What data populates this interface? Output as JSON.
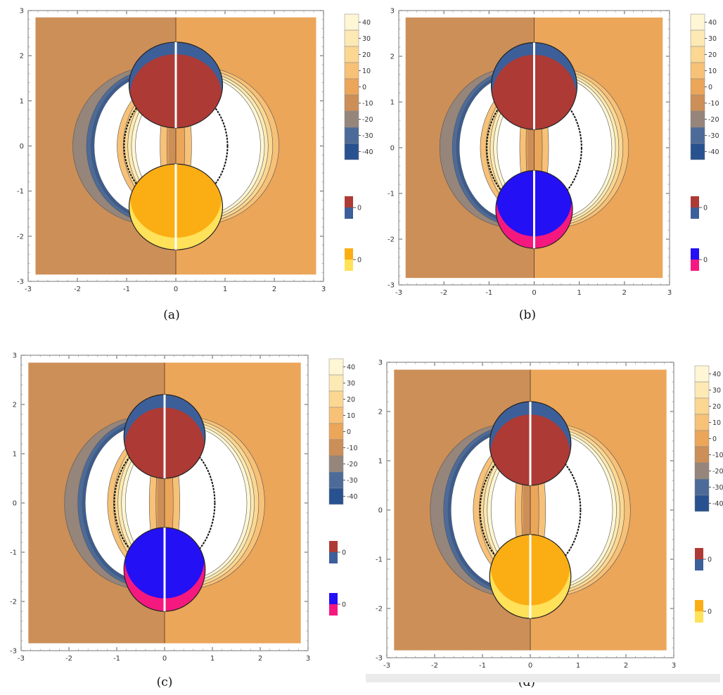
{
  "figure": {
    "colorbar_ticks": [
      "40",
      "30",
      "20",
      "10",
      "0",
      "-10",
      "-20",
      "-30",
      "-40"
    ],
    "small_legend_label": "0"
  },
  "chart_data": [
    {
      "type": "contour",
      "caption": "(a)",
      "xlim": [
        -3,
        3
      ],
      "ylim": [
        -3,
        3
      ],
      "x_ticks": [
        "-3",
        "-2",
        "-1",
        "0",
        "1",
        "2",
        "3"
      ],
      "y_ticks": [
        "3",
        "2",
        "1",
        "0",
        "-1",
        "-2",
        "-3"
      ],
      "colorbar_levels": [
        40,
        30,
        20,
        10,
        0,
        -10,
        -20,
        -30,
        -40
      ],
      "upper_disk": {
        "center": [
          0,
          1.35
        ],
        "radius": 0.95,
        "colors": [
          "#ad3a35",
          "#3d5f99"
        ]
      },
      "lower_disk": {
        "center": [
          0,
          -1.35
        ],
        "radius": 0.95,
        "colors": [
          "#fbae13",
          "#ffe15a"
        ]
      },
      "legend_pairs": [
        [
          "#ad3a35",
          "#3d5f99"
        ],
        [
          "#fbae13",
          "#ffe15a"
        ]
      ]
    },
    {
      "type": "contour",
      "caption": "(b)",
      "xlim": [
        -3,
        3
      ],
      "ylim": [
        -3,
        3
      ],
      "x_ticks": [
        "-3",
        "-2",
        "-1",
        "0",
        "1",
        "2",
        "3"
      ],
      "y_ticks": [
        "3",
        "2",
        "1",
        "0",
        "-1",
        "-2",
        "-3"
      ],
      "colorbar_levels": [
        40,
        30,
        20,
        10,
        0,
        -10,
        -20,
        -30,
        -40
      ],
      "upper_disk": {
        "center": [
          0,
          1.35
        ],
        "radius": 0.95,
        "colors": [
          "#ad3a35",
          "#3d5f99"
        ]
      },
      "lower_disk": {
        "center": [
          0,
          -1.35
        ],
        "radius": 0.85,
        "colors": [
          "#2410f5",
          "#f5197f"
        ]
      },
      "legend_pairs": [
        [
          "#ad3a35",
          "#3d5f99"
        ],
        [
          "#2410f5",
          "#f5197f"
        ]
      ]
    },
    {
      "type": "contour",
      "caption": "(c)",
      "xlim": [
        -3,
        3
      ],
      "ylim": [
        -3,
        3
      ],
      "x_ticks": [
        "-3",
        "-2",
        "-1",
        "0",
        "1",
        "2",
        "3"
      ],
      "y_ticks": [
        "3",
        "2",
        "1",
        "0",
        "-1",
        "-2",
        "-3"
      ],
      "colorbar_levels": [
        40,
        30,
        20,
        10,
        0,
        -10,
        -20,
        -30,
        -40
      ],
      "upper_disk": {
        "center": [
          0,
          1.35
        ],
        "radius": 0.85,
        "colors": [
          "#ad3a35",
          "#3d5f99"
        ]
      },
      "lower_disk": {
        "center": [
          0,
          -1.35
        ],
        "radius": 0.85,
        "colors": [
          "#2410f5",
          "#f5197f"
        ]
      },
      "legend_pairs": [
        [
          "#ad3a35",
          "#3d5f99"
        ],
        [
          "#2410f5",
          "#f5197f"
        ]
      ]
    },
    {
      "type": "contour",
      "caption": "(d)",
      "xlim": [
        -3,
        3
      ],
      "ylim": [
        -3,
        3
      ],
      "x_ticks": [
        "-3",
        "-2",
        "-1",
        "0",
        "1",
        "2",
        "3"
      ],
      "y_ticks": [
        "3",
        "2",
        "1",
        "0",
        "-1",
        "-2",
        "-3"
      ],
      "colorbar_levels": [
        40,
        30,
        20,
        10,
        0,
        -10,
        -20,
        -30,
        -40
      ],
      "upper_disk": {
        "center": [
          0,
          1.35
        ],
        "radius": 0.85,
        "colors": [
          "#ad3a35",
          "#3d5f99"
        ]
      },
      "lower_disk": {
        "center": [
          0,
          -1.35
        ],
        "radius": 0.85,
        "colors": [
          "#fbae13",
          "#ffe15a"
        ]
      },
      "legend_pairs": [
        [
          "#ad3a35",
          "#3d5f99"
        ],
        [
          "#fbae13",
          "#ffe15a"
        ]
      ]
    }
  ]
}
